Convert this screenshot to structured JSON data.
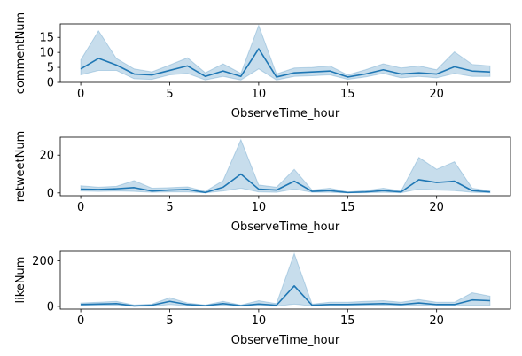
{
  "colors": {
    "line": "#1f77b4",
    "band": "#1f77b4"
  },
  "chart_data": [
    {
      "type": "line",
      "xlabel": "ObserveTime_hour",
      "ylabel": "commentNum",
      "xlim": [
        -1.15,
        24.15
      ],
      "ylim": [
        0,
        19.5
      ],
      "xticks": [
        0,
        5,
        10,
        15,
        20
      ],
      "yticks": [
        0,
        5,
        10,
        15
      ],
      "grid": false,
      "legend": "none",
      "x": [
        0,
        1,
        2,
        3,
        4,
        5,
        6,
        7,
        8,
        9,
        10,
        11,
        12,
        13,
        14,
        15,
        16,
        17,
        18,
        19,
        20,
        21,
        22,
        23
      ],
      "series": [
        {
          "values": [
            4.5,
            8.0,
            5.8,
            2.8,
            2.5,
            4.0,
            5.5,
            2.0,
            3.8,
            2.0,
            11.2,
            1.8,
            3.2,
            3.5,
            3.8,
            1.8,
            2.8,
            4.2,
            2.8,
            3.2,
            2.8,
            5.2,
            3.8,
            3.5
          ],
          "ci_lower": [
            2.5,
            4.0,
            4.0,
            1.2,
            1.0,
            2.5,
            3.0,
            0.8,
            2.0,
            0.8,
            4.5,
            0.8,
            2.0,
            2.2,
            2.5,
            1.0,
            1.8,
            3.0,
            1.5,
            2.0,
            1.5,
            3.0,
            2.0,
            2.0
          ],
          "ci_upper": [
            7.5,
            17.2,
            8.0,
            4.5,
            3.5,
            5.8,
            8.2,
            3.2,
            6.2,
            3.0,
            19.0,
            2.8,
            4.8,
            5.0,
            5.5,
            2.5,
            4.2,
            6.2,
            4.8,
            5.5,
            4.2,
            10.2,
            6.0,
            5.5
          ]
        }
      ]
    },
    {
      "type": "line",
      "xlabel": "ObserveTime_hour",
      "ylabel": "retweetNum",
      "xlim": [
        -1.15,
        24.15
      ],
      "ylim": [
        -1.5,
        29.5
      ],
      "xticks": [
        0,
        5,
        10,
        15,
        20
      ],
      "yticks": [
        0,
        20
      ],
      "grid": false,
      "legend": "none",
      "x": [
        0,
        1,
        2,
        3,
        4,
        5,
        6,
        7,
        8,
        9,
        10,
        11,
        12,
        13,
        14,
        15,
        16,
        17,
        18,
        19,
        20,
        21,
        22,
        23
      ],
      "series": [
        {
          "values": [
            2.0,
            1.8,
            2.2,
            2.8,
            1.0,
            1.5,
            1.8,
            0.2,
            3.0,
            10.0,
            2.0,
            1.5,
            6.2,
            0.8,
            1.2,
            0.2,
            0.5,
            1.2,
            0.5,
            7.0,
            5.5,
            6.2,
            1.2,
            0.5
          ],
          "ci_lower": [
            1.0,
            0.8,
            1.0,
            0.8,
            0.3,
            0.5,
            0.5,
            0.0,
            1.0,
            2.5,
            0.5,
            0.3,
            2.0,
            0.3,
            0.3,
            0.0,
            0.1,
            0.3,
            0.1,
            2.0,
            1.5,
            1.2,
            0.3,
            0.1
          ],
          "ci_upper": [
            3.8,
            3.0,
            3.5,
            6.5,
            2.5,
            2.8,
            3.2,
            0.8,
            6.5,
            28.2,
            4.2,
            3.0,
            12.5,
            1.5,
            2.5,
            0.5,
            1.2,
            2.5,
            1.0,
            18.8,
            12.5,
            16.5,
            2.5,
            1.0
          ]
        }
      ]
    },
    {
      "type": "line",
      "xlabel": "ObserveTime_hour",
      "ylabel": "likeNum",
      "xlim": [
        -1.15,
        24.15
      ],
      "ylim": [
        -12,
        245
      ],
      "xticks": [
        0,
        5,
        10,
        15,
        20
      ],
      "yticks": [
        0,
        200
      ],
      "grid": false,
      "legend": "none",
      "x": [
        0,
        1,
        2,
        3,
        4,
        5,
        6,
        7,
        8,
        9,
        10,
        11,
        12,
        13,
        14,
        15,
        16,
        17,
        18,
        19,
        20,
        21,
        22,
        23
      ],
      "series": [
        {
          "values": [
            8,
            10,
            12,
            2,
            5,
            22,
            8,
            3,
            12,
            3,
            10,
            5,
            90,
            5,
            8,
            8,
            10,
            12,
            8,
            15,
            8,
            8,
            28,
            25
          ],
          "ci_lower": [
            3,
            3,
            5,
            0,
            1,
            8,
            3,
            1,
            4,
            1,
            2,
            1,
            10,
            2,
            2,
            2,
            3,
            4,
            2,
            5,
            2,
            2,
            5,
            5
          ],
          "ci_upper": [
            15,
            18,
            22,
            6,
            10,
            38,
            15,
            6,
            22,
            6,
            25,
            12,
            232,
            10,
            18,
            18,
            22,
            25,
            18,
            30,
            18,
            18,
            60,
            45
          ]
        }
      ]
    }
  ]
}
